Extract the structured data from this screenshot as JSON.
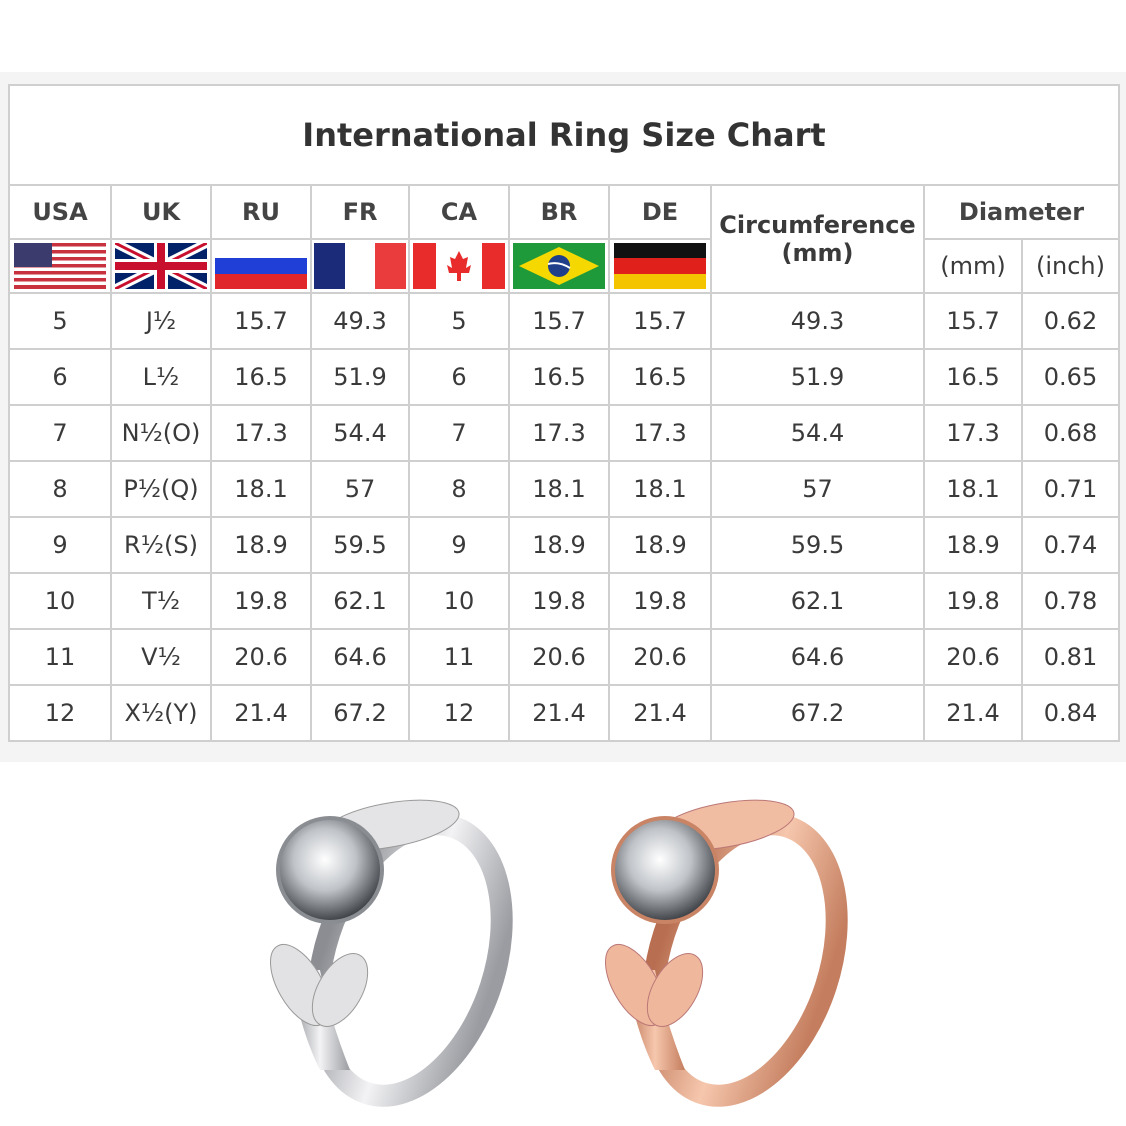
{
  "title": "International Ring Size Chart",
  "headers": {
    "usa": "USA",
    "uk": "UK",
    "ru": "RU",
    "fr": "FR",
    "ca": "CA",
    "br": "BR",
    "de": "DE",
    "circumference": "Circumference",
    "circumference_unit": "(mm)",
    "diameter": "Diameter",
    "diameter_mm": "(mm)",
    "diameter_inch": "(inch)"
  },
  "flags": [
    "usa-flag",
    "uk-flag",
    "russia-flag",
    "france-flag",
    "canada-flag",
    "brazil-flag",
    "germany-flag"
  ],
  "rows": [
    [
      "5",
      "J½",
      "15.7",
      "49.3",
      "5",
      "15.7",
      "15.7",
      "49.3",
      "15.7",
      "0.62"
    ],
    [
      "6",
      "L½",
      "16.5",
      "51.9",
      "6",
      "16.5",
      "16.5",
      "51.9",
      "16.5",
      "0.65"
    ],
    [
      "7",
      "N½(O)",
      "17.3",
      "54.4",
      "7",
      "17.3",
      "17.3",
      "54.4",
      "17.3",
      "0.68"
    ],
    [
      "8",
      "P½(Q)",
      "18.1",
      "57",
      "8",
      "18.1",
      "18.1",
      "57",
      "18.1",
      "0.71"
    ],
    [
      "9",
      "R½(S)",
      "18.9",
      "59.5",
      "9",
      "18.9",
      "18.9",
      "59.5",
      "18.9",
      "0.74"
    ],
    [
      "10",
      "T½",
      "19.8",
      "62.1",
      "10",
      "19.8",
      "19.8",
      "62.1",
      "19.8",
      "0.78"
    ],
    [
      "11",
      "V½",
      "20.6",
      "64.6",
      "11",
      "20.6",
      "20.6",
      "64.6",
      "20.6",
      "0.81"
    ],
    [
      "12",
      "X½(Y)",
      "21.4",
      "67.2",
      "12",
      "21.4",
      "21.4",
      "67.2",
      "21.4",
      "0.84"
    ]
  ],
  "products": [
    {
      "name": "silver-ring",
      "color": "#d8d8dc"
    },
    {
      "name": "rose-gold-ring",
      "color": "#e8a98a"
    }
  ]
}
